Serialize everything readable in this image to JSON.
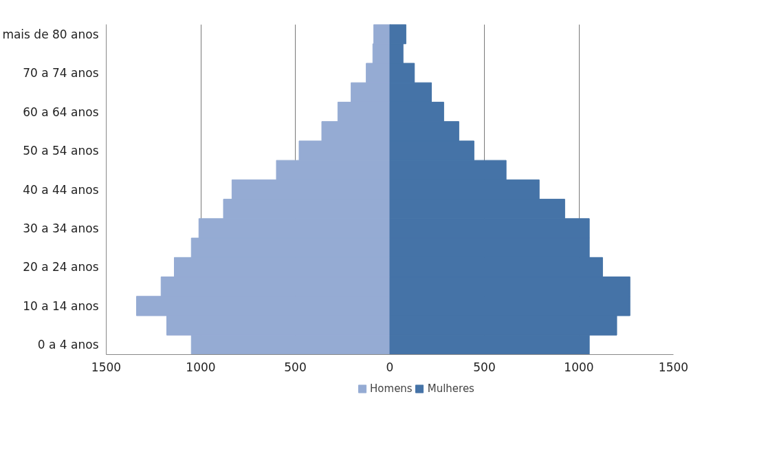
{
  "chart_data": {
    "type": "bar",
    "orientation": "horizontal",
    "categories": [
      "mais de 80 anos",
      null,
      "70 a 74 anos",
      null,
      "60 a 64 anos",
      null,
      "50 a 54 anos",
      null,
      "40 a 44 anos",
      null,
      "30 a 34 anos",
      null,
      "20 a 24 anos",
      null,
      "10 a 14 anos",
      null,
      "0 a 4 anos"
    ],
    "series": [
      {
        "name": "Homens",
        "color": "#95abd3",
        "values": [
          -85,
          -90,
          -125,
          -205,
          -275,
          -360,
          -480,
          -600,
          -835,
          -880,
          -1010,
          -1050,
          -1140,
          -1210,
          -1340,
          -1180,
          -1050
        ]
      },
      {
        "name": "Mulheres",
        "color": "#4573a7",
        "values": [
          85,
          70,
          130,
          220,
          285,
          365,
          445,
          615,
          790,
          925,
          1055,
          1055,
          1125,
          1270,
          1270,
          1200,
          1055
        ]
      }
    ],
    "xlim": [
      -1500,
      1500
    ],
    "xticks": [
      {
        "value": -1500,
        "label": "1500"
      },
      {
        "value": -1000,
        "label": "1000"
      },
      {
        "value": -500,
        "label": "500"
      },
      0,
      500,
      1000,
      1500
    ],
    "grid": "x",
    "legend": "bottom",
    "stacked": true
  }
}
